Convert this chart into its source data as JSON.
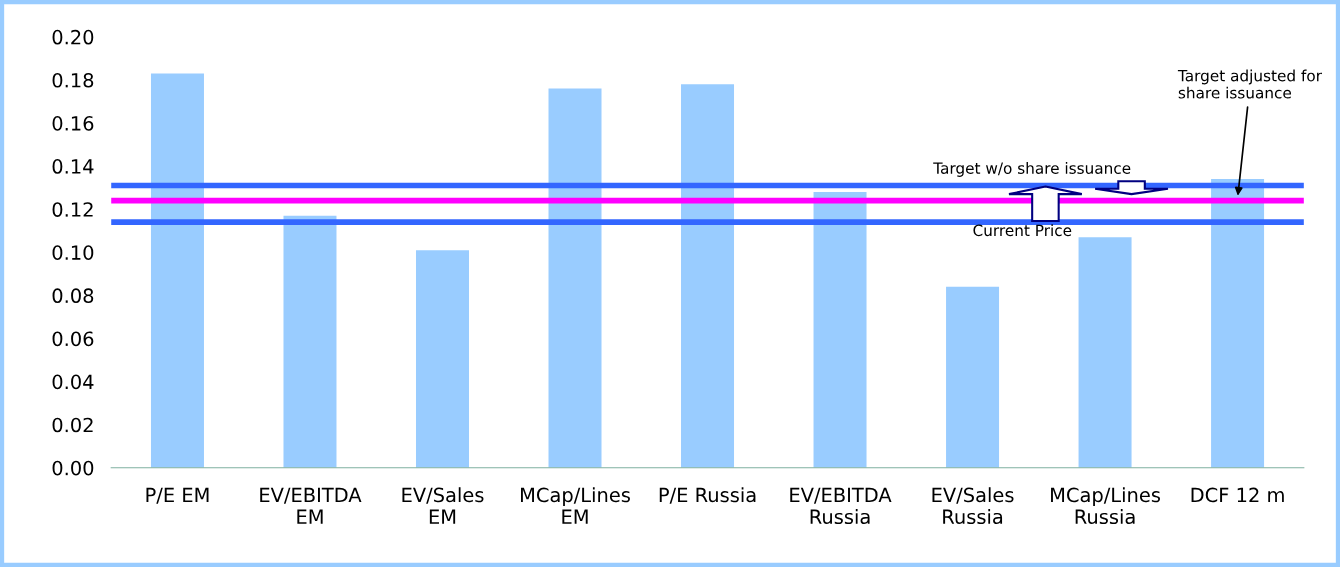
{
  "chart_data": {
    "type": "bar",
    "categories": [
      "P/E EM",
      "EV/EBITDA\nEM",
      "EV/Sales\nEM",
      "MCap/Lines\nEM",
      "P/E Russia",
      "EV/EBITDA\nRussia",
      "EV/Sales\nRussia",
      "MCap/Lines\nRussia",
      "DCF 12 m"
    ],
    "values": [
      0.183,
      0.117,
      0.101,
      0.176,
      0.178,
      0.128,
      0.084,
      0.107,
      0.134
    ],
    "color": "#99ccff",
    "ylim": [
      0,
      0.2
    ],
    "yticks": [
      {
        "value": 0,
        "label": "0.00"
      },
      {
        "value": 0.02,
        "label": "0.02"
      },
      {
        "value": 0.04,
        "label": "0.04"
      },
      {
        "value": 0.06,
        "label": "0.06"
      },
      {
        "value": 0.08,
        "label": "0.08"
      },
      {
        "value": 0.1,
        "label": "0.10"
      },
      {
        "value": 0.12,
        "label": "0.12"
      },
      {
        "value": 0.14,
        "label": "0.14"
      },
      {
        "value": 0.16,
        "label": "0.16"
      },
      {
        "value": 0.18,
        "label": "0.18"
      },
      {
        "value": 0.2,
        "label": "0.20"
      }
    ],
    "ref_lines": [
      {
        "axis": "y",
        "value": 0.131,
        "label": "Target w/o share issuance",
        "color": "#3366ff"
      },
      {
        "axis": "y",
        "value": 0.124,
        "label": "Target adjusted for\nshare issuance",
        "color": "#ff00ff"
      },
      {
        "axis": "y",
        "value": 0.114,
        "label": "Current Price",
        "color": "#3366ff"
      }
    ],
    "grid": false,
    "legend": false
  }
}
